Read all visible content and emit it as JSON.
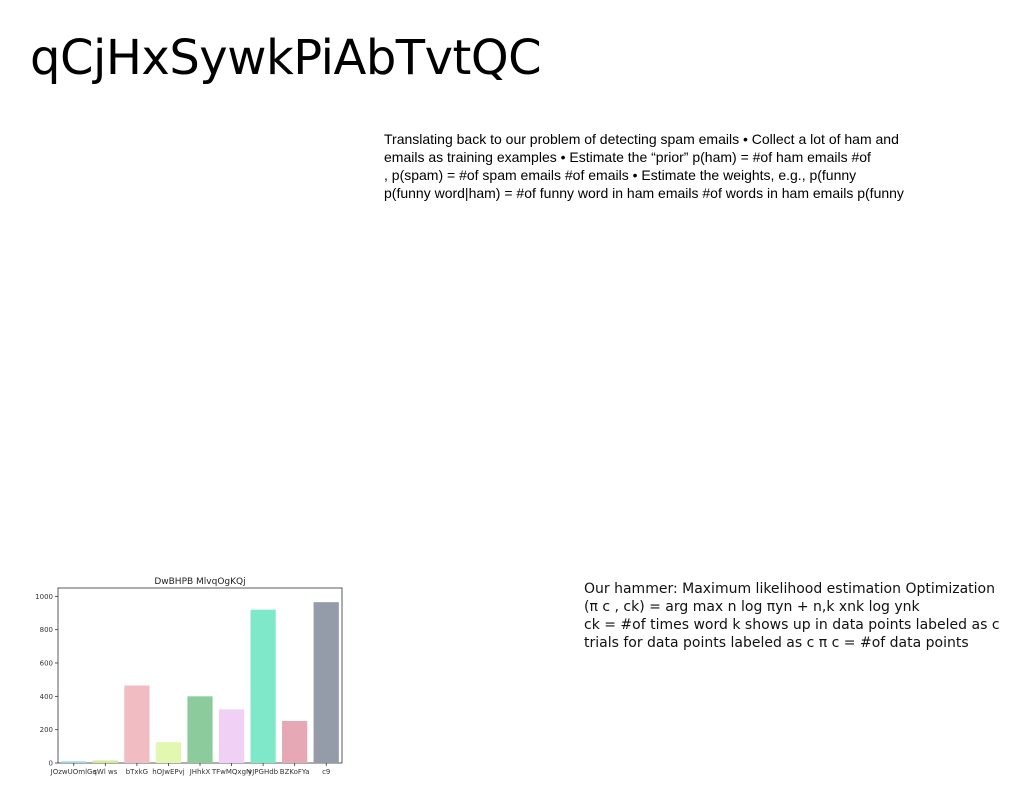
{
  "slide": {
    "title": "qCjHxSywkPiAbTvtQC",
    "paragraph_lines": [
      "Translating back to our problem of detecting spam emails • Collect a lot of ham and",
      "emails as training examples • Estimate the “prior” p(ham) = #of ham emails #of",
      ", p(spam) = #of spam emails #of emails • Estimate the weights, e.g., p(funny",
      "p(funny word|ham) = #of funny word in ham emails #of words in ham emails p(funny"
    ],
    "hammer_lines": [
      "Our hammer: Maximum likelihood estimation Optimization",
      "(π c , ck) = arg max   n log πyn +  n,k xnk log ynk  ",
      " ck = #of times word k shows up in data points labeled as c",
      "trials for data points labeled as c π c = #of data points"
    ]
  },
  "chart_data": {
    "type": "bar",
    "title": "DwBHPB MlvqOgKQj",
    "categories": [
      "JOzwUOmlGq",
      "sWl ws",
      "bTxkG",
      "hOJwEPvj",
      "JHhkX",
      "TFwMQxgN",
      "yJPGHdb",
      "BZKoFYa",
      "c9"
    ],
    "values": [
      10,
      15,
      465,
      125,
      400,
      322,
      920,
      252,
      965
    ],
    "colors": [
      "#9fd4f0",
      "#d6e89a",
      "#f2bcc3",
      "#e2f7b0",
      "#8ccc9c",
      "#f0d0f4",
      "#7fe8c9",
      "#e6a8b5",
      "#949ba9"
    ],
    "ylim": [
      0,
      1050
    ],
    "yticks": [
      0,
      200,
      400,
      600,
      800,
      1000
    ]
  }
}
